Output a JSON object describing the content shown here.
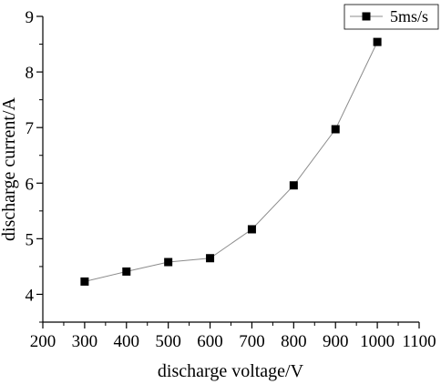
{
  "chart_data": {
    "type": "line",
    "title": "",
    "xlabel": "discharge voltage/V",
    "ylabel": "discharge current/A",
    "xlim": [
      200,
      1100
    ],
    "ylim": [
      3.5,
      9
    ],
    "xticks": [
      "200",
      "300",
      "400",
      "500",
      "600",
      "700",
      "800",
      "900",
      "1000",
      "1100"
    ],
    "yticks": [
      "4",
      "5",
      "6",
      "7",
      "8",
      "9"
    ],
    "grid": false,
    "legend_position": "top-right",
    "series": [
      {
        "name": "5ms/s",
        "color": "#000000",
        "marker": "square",
        "x": [
          300,
          400,
          500,
          600,
          700,
          800,
          900,
          1000
        ],
        "y": [
          4.23,
          4.41,
          4.58,
          4.65,
          5.17,
          5.96,
          6.97,
          8.54
        ]
      }
    ]
  }
}
